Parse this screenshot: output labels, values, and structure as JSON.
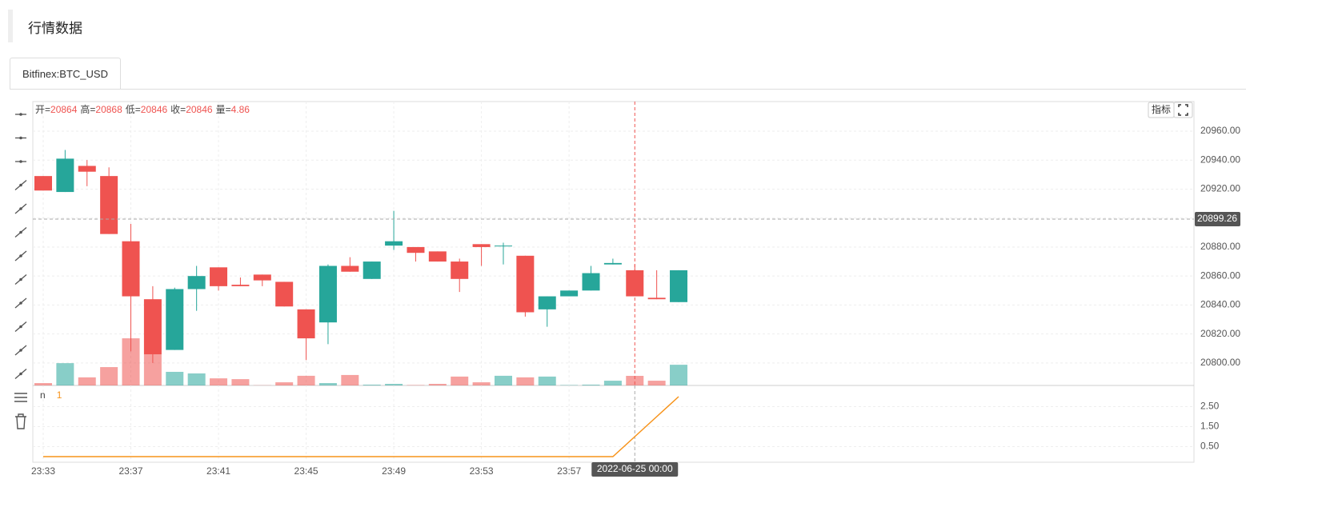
{
  "header": {
    "title": "行情数据"
  },
  "tabs": [
    "Bitfinex:BTC_USD"
  ],
  "toolbar": {
    "indicator_button": "指标"
  },
  "chart_data": {
    "type": "candlestick",
    "legend_labels": [
      "开=",
      "高=",
      "低=",
      "收=",
      "量="
    ],
    "categories": [
      "23:33",
      null,
      null,
      null,
      "23:37",
      null,
      null,
      null,
      "23:41",
      null,
      null,
      null,
      "23:45",
      null,
      null,
      null,
      "23:49",
      null,
      null,
      null,
      "23:53",
      null,
      null,
      null,
      "23:57",
      null,
      null,
      "2022-06-25 00:00",
      null,
      null
    ],
    "open": [
      20929,
      20918,
      20936,
      20929,
      20884,
      20844,
      20809,
      20851,
      20866,
      20854,
      20861,
      20856,
      20837,
      20828,
      20867,
      20858,
      20881,
      20880,
      20877,
      20870,
      20882,
      20881,
      20874,
      20837,
      20846,
      20850,
      20868,
      20864,
      20845,
      20842
    ],
    "high": [
      20929,
      20947,
      20940,
      20935,
      20896,
      20853,
      20852,
      20867,
      20866,
      20859,
      20861,
      20856,
      20837,
      20868,
      20873,
      20870,
      20905,
      20880,
      20877,
      20872,
      20882,
      20883,
      20874,
      20846,
      20850,
      20867,
      20872,
      20868,
      20864,
      20864
    ],
    "low": [
      20919,
      20918,
      20922,
      20889,
      20808,
      20800,
      20809,
      20836,
      20850,
      20853,
      20853,
      20839,
      20802,
      20813,
      20863,
      20858,
      20878,
      20870,
      20870,
      20849,
      20867,
      20868,
      20832,
      20825,
      20846,
      20850,
      20868,
      20846,
      20844,
      20842
    ],
    "close": [
      20919,
      20941,
      20932,
      20889,
      20846,
      20806,
      20851,
      20860,
      20853,
      20853,
      20857,
      20839,
      20817,
      20867,
      20863,
      20870,
      20884,
      20876,
      20870,
      20858,
      20880,
      20881,
      20835,
      20846,
      20850,
      20862,
      20869,
      20846,
      20844,
      20864
    ],
    "volume": [
      1.2,
      11.3,
      4.1,
      9.3,
      23.9,
      15.8,
      6.9,
      6.1,
      3.6,
      3.2,
      0.1,
      1.6,
      4.9,
      1.2,
      5.3,
      0.4,
      0.8,
      0.2,
      0.8,
      4.5,
      1.6,
      4.9,
      4.1,
      4.5,
      0.2,
      0.4,
      2.4,
      4.86,
      2.4,
      10.5
    ],
    "volume_lim": [
      0,
      60
    ],
    "up_color": "#26a69a",
    "down_color": "#ef5350",
    "ylim": [
      20784.5,
      20980.4
    ],
    "yticks": [
      {
        "value": 20800,
        "label": "20800.00"
      },
      {
        "value": 20820,
        "label": "20820.00"
      },
      {
        "value": 20840,
        "label": "20840.00"
      },
      {
        "value": 20860,
        "label": "20860.00"
      },
      {
        "value": 20880,
        "label": "20880.00"
      },
      {
        "value": 20900,
        "label": "20900.00"
      },
      {
        "value": 20920,
        "label": "20920.00"
      },
      {
        "value": 20940,
        "label": "20940.00"
      },
      {
        "value": 20960,
        "label": "20960.00"
      }
    ],
    "grid": true,
    "last_price": 20899.26,
    "crosshair": 27,
    "indicator": {
      "type": "line",
      "name": "n",
      "color": "#f7931a",
      "values": [
        0,
        0,
        0,
        0,
        0,
        0,
        0,
        0,
        0,
        0,
        0,
        0,
        0,
        0,
        0,
        0,
        0,
        0,
        0,
        0,
        0,
        0,
        0,
        0,
        0,
        0,
        0,
        1,
        2,
        3
      ],
      "ylim": [
        -0.28,
        3.56
      ],
      "yticks": [
        {
          "value": 0.5,
          "label": "0.50"
        },
        {
          "value": 1.5,
          "label": "1.50"
        },
        {
          "value": 2.5,
          "label": "2.50"
        }
      ]
    }
  }
}
